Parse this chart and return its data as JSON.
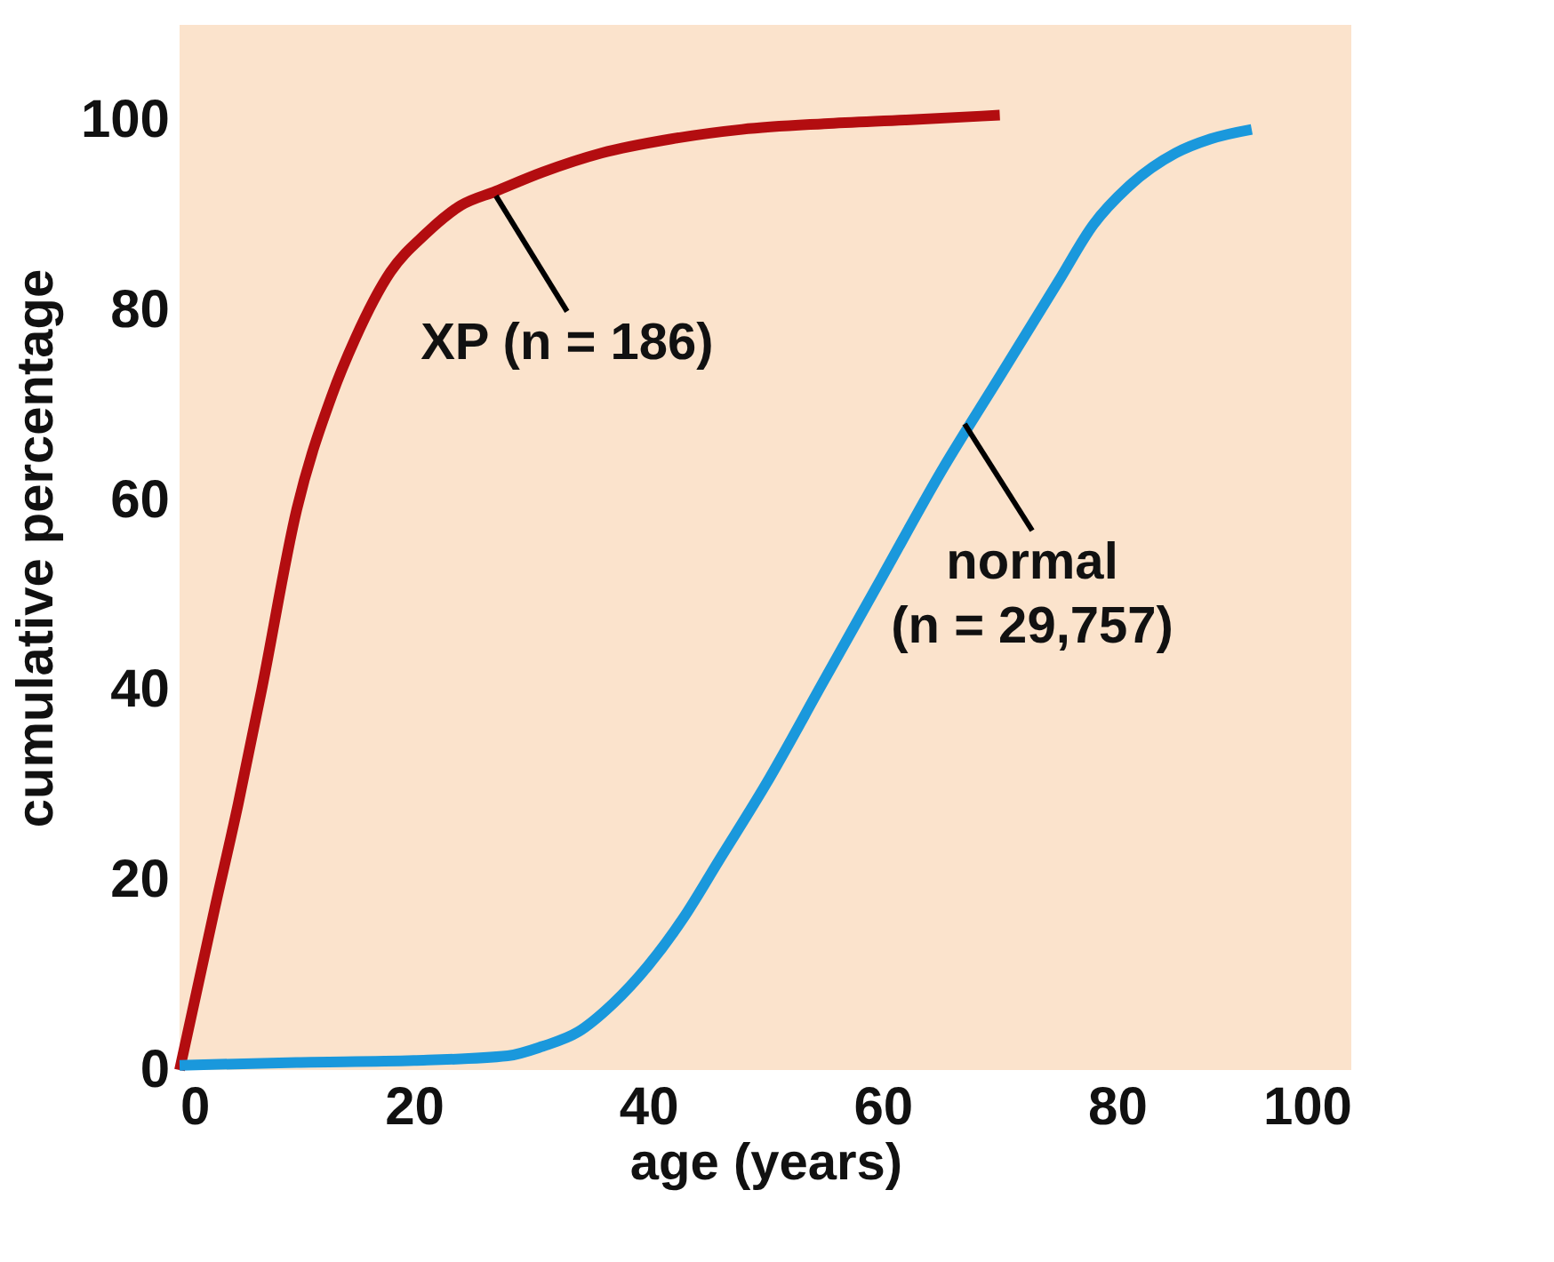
{
  "chart_data": {
    "type": "line",
    "xlabel": "age (years)",
    "ylabel": "cumulative percentage",
    "xlim": [
      0,
      100
    ],
    "ylim": [
      0,
      110
    ],
    "xticks": [
      0,
      20,
      40,
      60,
      80,
      100
    ],
    "yticks": [
      0,
      20,
      40,
      60,
      80,
      100
    ],
    "grid": false,
    "legend": false,
    "marker": "none",
    "line_style": "solid",
    "series": [
      {
        "color": "#b30d10",
        "x": [
          0,
          3,
          5,
          7,
          10,
          13,
          15,
          18,
          21,
          24,
          27,
          31,
          36,
          42,
          48,
          55,
          62,
          70
        ],
        "values": [
          0,
          17,
          28,
          40,
          59,
          71,
          77,
          84,
          88,
          91,
          92.5,
          94.5,
          96.5,
          98,
          99,
          99.6,
          100,
          100.5
        ]
      },
      {
        "color": "#1a98dc",
        "x": [
          0,
          10,
          20,
          28,
          31,
          34,
          37,
          40,
          43,
          46,
          50,
          55,
          60,
          65,
          70,
          75,
          78,
          81,
          85,
          88,
          91.5
        ],
        "values": [
          0.5,
          0.8,
          1,
          1.5,
          2.5,
          4,
          7,
          11,
          16,
          22,
          30,
          41,
          52,
          63,
          73,
          83,
          89,
          93,
          96.5,
          98,
          99
        ]
      }
    ],
    "annotations": [
      {
        "text": "XP (n = 186)",
        "x": 27,
        "y": 92
      },
      {
        "text": "normal\n(n = 29,757)",
        "x": 67,
        "y": 68
      }
    ]
  }
}
